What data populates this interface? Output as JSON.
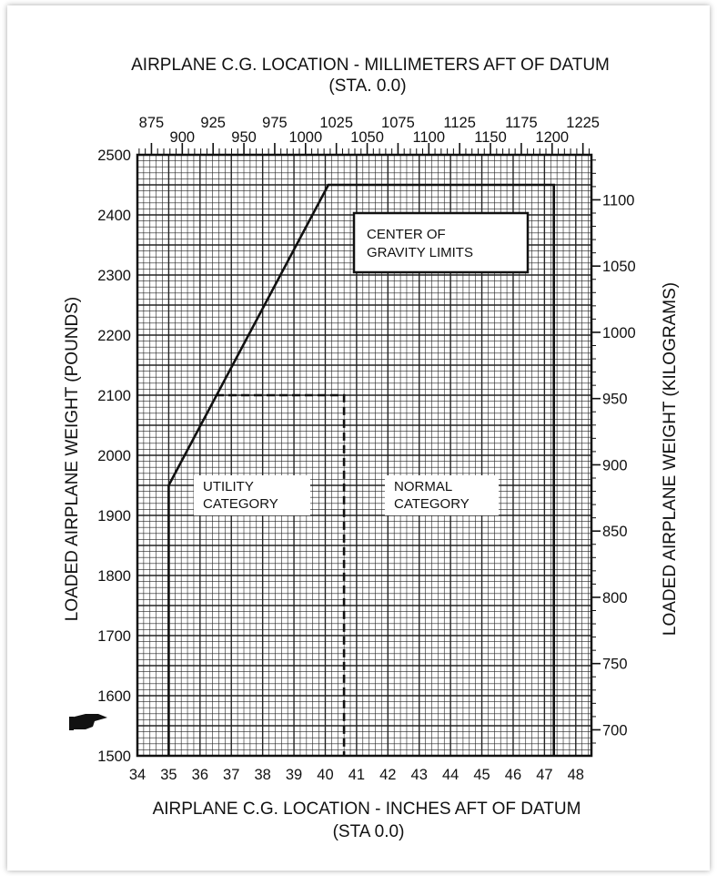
{
  "chart_data": {
    "type": "line",
    "title_top": "AIRPLANE C.G. LOCATION - MILLIMETERS AFT OF DATUM",
    "title_top_sub": "(STA. 0.0)",
    "xlabel": "AIRPLANE C.G. LOCATION - INCHES AFT OF DATUM",
    "xlabel_sub": "(STA 0.0)",
    "ylabel_left": "LOADED AIRPLANE WEIGHT (POUNDS)",
    "ylabel_right": "LOADED AIRPLANE WEIGHT (KILOGRAMS)",
    "xlim": [
      34,
      48.5
    ],
    "ylim": [
      1500,
      2500
    ],
    "x_ticks": [
      "34",
      "35",
      "36",
      "37",
      "38",
      "39",
      "40",
      "41",
      "42",
      "43",
      "44",
      "45",
      "46",
      "47",
      "48"
    ],
    "y_ticks_left": [
      "1500",
      "1600",
      "1700",
      "1800",
      "1900",
      "2000",
      "2100",
      "2200",
      "2300",
      "2400",
      "2500"
    ],
    "y_ticks_right": [
      "700",
      "750",
      "800",
      "850",
      "900",
      "950",
      "1000",
      "1050",
      "1100"
    ],
    "mm_ticks_upper": [
      "875",
      "925",
      "975",
      "1025",
      "1075",
      "1125",
      "1175",
      "1225"
    ],
    "mm_ticks_lower": [
      "900",
      "950",
      "1000",
      "1050",
      "1100",
      "1150",
      "1200"
    ],
    "grid": true,
    "series": [
      {
        "role": "normal-category-envelope",
        "style": "solid",
        "x": [
          35.0,
          35.0,
          40.1,
          47.3,
          47.3
        ],
        "y": [
          1500,
          1950,
          2450,
          2450,
          1500
        ]
      },
      {
        "role": "utility-category-limit",
        "style": "dashed",
        "x": [
          36.5,
          40.6,
          40.6
        ],
        "y": [
          2100,
          2100,
          1500
        ]
      }
    ],
    "annotations": {
      "cg_limits": [
        "CENTER OF",
        "GRAVITY LIMITS"
      ],
      "utility": [
        "UTILITY",
        "CATEGORY"
      ],
      "normal": [
        "NORMAL",
        "CATEGORY"
      ]
    },
    "pointer_icon": "pointing-hand-icon",
    "line_color": "#111111",
    "grid_color": "#222222"
  }
}
